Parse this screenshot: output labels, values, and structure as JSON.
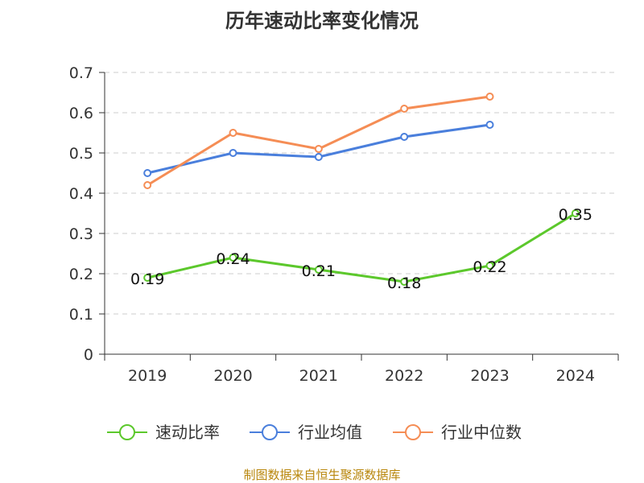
{
  "title": "历年速动比率变化情况",
  "source": "制图数据来自恒生聚源数据库",
  "chart_data": {
    "type": "line",
    "title": "历年速动比率变化情况",
    "categories": [
      "2019",
      "2020",
      "2021",
      "2022",
      "2023",
      "2024"
    ],
    "ylim": [
      0,
      0.7
    ],
    "yticks": [
      "0",
      "0.1",
      "0.2",
      "0.3",
      "0.4",
      "0.5",
      "0.6",
      "0.7"
    ],
    "grid": true,
    "legend_position": "bottom",
    "series": [
      {
        "name": "速动比率",
        "color": "#5cc82c",
        "values": [
          0.19,
          0.24,
          0.21,
          0.18,
          0.22,
          0.35
        ],
        "labels": [
          "0.19",
          "0.24",
          "0.21",
          "0.18",
          "0.22",
          "0.35"
        ]
      },
      {
        "name": "行业均值",
        "color": "#4a7fdc",
        "values": [
          0.45,
          0.5,
          0.49,
          0.54,
          0.57,
          null
        ]
      },
      {
        "name": "行业中位数",
        "color": "#f58d55",
        "values": [
          0.42,
          0.55,
          0.51,
          0.61,
          0.64,
          null
        ]
      }
    ]
  }
}
